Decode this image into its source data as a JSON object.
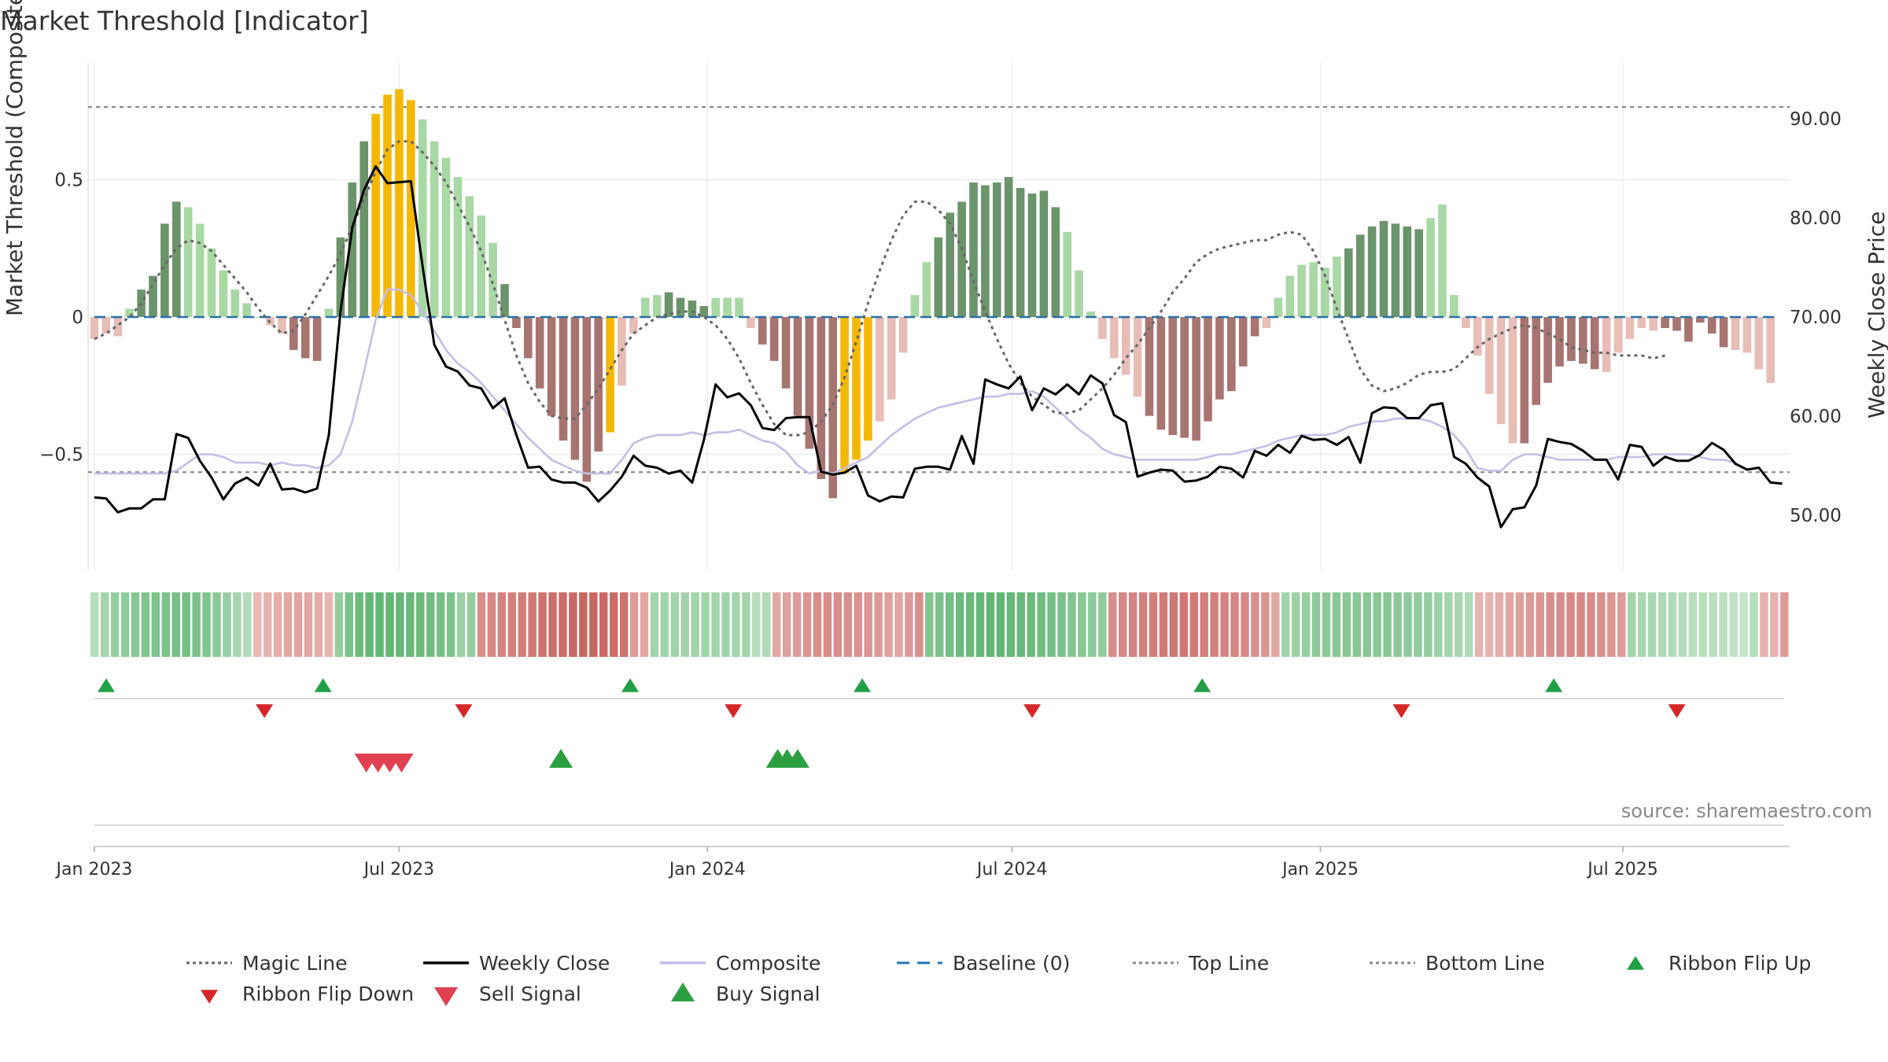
{
  "chart_data": {
    "type": "bar",
    "title": "Market Threshold [Indicator]",
    "ylabel_left": "Market Threshold (Composite)",
    "ylabel_right": "Weekly Close Price",
    "source": "source: sharemaestro.com",
    "ylim_left": [
      -0.93,
      0.93
    ],
    "ylim_right": [
      45.5,
      96.5
    ],
    "left_ticks": [
      {
        "value": 0.5,
        "label": "0.5"
      },
      {
        "value": 0,
        "label": "0"
      },
      {
        "value": -0.5,
        "label": "−0.5"
      }
    ],
    "right_ticks": [
      {
        "value": 90,
        "label": "90.00"
      },
      {
        "value": 80,
        "label": "80.00"
      },
      {
        "value": 70,
        "label": "70.00"
      },
      {
        "value": 60,
        "label": "60.00"
      },
      {
        "value": 50,
        "label": "50.00"
      }
    ],
    "x_ticks": [
      {
        "week": 0,
        "label": "Jan 2023"
      },
      {
        "week": 26,
        "label": "Jul 2023"
      },
      {
        "week": 52.3,
        "label": "Jan 2024"
      },
      {
        "week": 78.3,
        "label": "Jul 2024"
      },
      {
        "week": 104.6,
        "label": "Jan 2025"
      },
      {
        "week": 130.4,
        "label": "Jul 2025"
      }
    ],
    "x_start": "2023-01-02",
    "top_line": 0.765,
    "bottom_line": -0.565,
    "baseline": 0,
    "composite_hist": [
      -0.08,
      -0.06,
      -0.07,
      0.03,
      0.1,
      0.15,
      0.34,
      0.42,
      0.4,
      0.34,
      0.25,
      0.17,
      0.1,
      0.05,
      0,
      -0.03,
      -0.06,
      -0.12,
      -0.15,
      -0.16,
      0.03,
      0.29,
      0.49,
      0.64,
      0.74,
      0.81,
      0.83,
      0.79,
      0.72,
      0.64,
      0.58,
      0.51,
      0.44,
      0.37,
      0.27,
      0.12,
      -0.04,
      -0.15,
      -0.26,
      -0.36,
      -0.45,
      -0.52,
      -0.6,
      -0.49,
      -0.42,
      -0.25,
      -0.06,
      0.07,
      0.08,
      0.09,
      0.07,
      0.06,
      0.04,
      0.07,
      0.07,
      0.07,
      -0.04,
      -0.1,
      -0.16,
      -0.26,
      -0.36,
      -0.48,
      -0.59,
      -0.66,
      -0.57,
      -0.52,
      -0.45,
      -0.38,
      -0.3,
      -0.13,
      0.08,
      0.2,
      0.29,
      0.38,
      0.42,
      0.49,
      0.48,
      0.49,
      0.51,
      0.47,
      0.45,
      0.46,
      0.4,
      0.31,
      0.17,
      0.02,
      -0.08,
      -0.15,
      -0.21,
      -0.29,
      -0.36,
      -0.41,
      -0.43,
      -0.44,
      -0.45,
      -0.38,
      -0.3,
      -0.27,
      -0.18,
      -0.07,
      -0.04,
      0.07,
      0.15,
      0.19,
      0.2,
      0.18,
      0.22,
      0.25,
      0.3,
      0.33,
      0.35,
      0.34,
      0.33,
      0.32,
      0.36,
      0.41,
      0.08,
      -0.04,
      -0.14,
      -0.28,
      -0.39,
      -0.46,
      -0.46,
      -0.32,
      -0.24,
      -0.18,
      -0.16,
      -0.17,
      -0.19,
      -0.2,
      -0.13,
      -0.08,
      -0.04,
      -0.05,
      -0.04,
      -0.05,
      -0.09,
      -0.02,
      -0.06,
      -0.11,
      -0.12,
      -0.13,
      -0.19,
      -0.24
    ],
    "hist_colors": {
      "strong_pos": "#6a946a",
      "weak_pos": "#a8d8a4",
      "strong_neg": "#a87470",
      "weak_neg": "#e8bdb6",
      "extreme": "#f5b800"
    },
    "hist_shades": "WWWWSSSSWWWWWWWWWSSSWSSSXXXXWWWWWWWSSSSSSSSSXWWWWSSSSWWWWSSSSSSSXXXWWWWWSSSSSSSSSSSWWWWWWWSSSSSSSSSSWWWWWWWSSSSSSSWWWWWWWWSSSSSSSWWWWWSSSSSSWWWWWWSSSSSS",
    "composite_line": [
      -0.57,
      -0.57,
      -0.57,
      -0.57,
      -0.57,
      -0.57,
      -0.57,
      -0.56,
      -0.53,
      -0.5,
      -0.5,
      -0.51,
      -0.53,
      -0.53,
      -0.53,
      -0.54,
      -0.53,
      -0.54,
      -0.54,
      -0.55,
      -0.54,
      -0.5,
      -0.38,
      -0.2,
      -0.01,
      0.1,
      0.1,
      0.08,
      0.02,
      -0.05,
      -0.12,
      -0.17,
      -0.2,
      -0.24,
      -0.29,
      -0.34,
      -0.39,
      -0.44,
      -0.48,
      -0.52,
      -0.54,
      -0.56,
      -0.57,
      -0.57,
      -0.57,
      -0.52,
      -0.46,
      -0.44,
      -0.43,
      -0.43,
      -0.43,
      -0.42,
      -0.43,
      -0.42,
      -0.42,
      -0.41,
      -0.43,
      -0.45,
      -0.46,
      -0.49,
      -0.54,
      -0.57,
      -0.56,
      -0.57,
      -0.55,
      -0.53,
      -0.51,
      -0.47,
      -0.43,
      -0.4,
      -0.37,
      -0.35,
      -0.33,
      -0.32,
      -0.31,
      -0.3,
      -0.29,
      -0.29,
      -0.28,
      -0.28,
      -0.27,
      -0.29,
      -0.33,
      -0.37,
      -0.41,
      -0.44,
      -0.48,
      -0.5,
      -0.51,
      -0.52,
      -0.52,
      -0.52,
      -0.52,
      -0.52,
      -0.52,
      -0.51,
      -0.5,
      -0.5,
      -0.49,
      -0.48,
      -0.47,
      -0.45,
      -0.44,
      -0.43,
      -0.43,
      -0.43,
      -0.42,
      -0.4,
      -0.39,
      -0.38,
      -0.38,
      -0.37,
      -0.37,
      -0.37,
      -0.38,
      -0.4,
      -0.43,
      -0.48,
      -0.55,
      -0.56,
      -0.56,
      -0.52,
      -0.5,
      -0.5,
      -0.51,
      -0.52,
      -0.52,
      -0.52,
      -0.52,
      -0.52,
      -0.51,
      -0.51,
      -0.51,
      -0.5,
      -0.5,
      -0.5,
      -0.5,
      -0.51,
      -0.52,
      -0.52,
      -0.53
    ],
    "magic_line": [
      -0.08,
      -0.06,
      -0.03,
      0,
      0.05,
      0.12,
      0.19,
      0.25,
      0.28,
      0.27,
      0.24,
      0.19,
      0.14,
      0.09,
      0.03,
      -0.02,
      -0.06,
      -0.05,
      0.01,
      0.08,
      0.15,
      0.23,
      0.33,
      0.43,
      0.53,
      0.61,
      0.64,
      0.64,
      0.6,
      0.55,
      0.49,
      0.41,
      0.33,
      0.24,
      0.12,
      -0.01,
      -0.14,
      -0.24,
      -0.31,
      -0.36,
      -0.37,
      -0.37,
      -0.32,
      -0.26,
      -0.19,
      -0.12,
      -0.06,
      -0.03,
      0,
      0.01,
      0.02,
      0.02,
      0,
      -0.03,
      -0.08,
      -0.15,
      -0.24,
      -0.32,
      -0.39,
      -0.43,
      -0.43,
      -0.42,
      -0.38,
      -0.32,
      -0.22,
      -0.09,
      0.05,
      0.17,
      0.28,
      0.37,
      0.42,
      0.42,
      0.39,
      0.34,
      0.25,
      0.13,
      0.02,
      -0.08,
      -0.17,
      -0.24,
      -0.29,
      -0.32,
      -0.35,
      -0.35,
      -0.34,
      -0.3,
      -0.26,
      -0.21,
      -0.15,
      -0.1,
      -0.04,
      0.02,
      0.09,
      0.14,
      0.2,
      0.23,
      0.25,
      0.26,
      0.27,
      0.28,
      0.28,
      0.3,
      0.31,
      0.3,
      0.24,
      0.15,
      0.03,
      -0.08,
      -0.19,
      -0.25,
      -0.27,
      -0.26,
      -0.24,
      -0.21,
      -0.2,
      -0.2,
      -0.19,
      -0.15,
      -0.11,
      -0.08,
      -0.06,
      -0.04,
      -0.03,
      -0.04,
      -0.06,
      -0.08,
      -0.11,
      -0.12,
      -0.13,
      -0.13,
      -0.14,
      -0.14,
      -0.14,
      -0.15,
      -0.14
    ],
    "weekly_close": [
      51.8,
      51.7,
      50.3,
      50.7,
      50.7,
      51.6,
      51.6,
      58.2,
      57.8,
      55.5,
      53.8,
      51.6,
      53.2,
      53.8,
      53.0,
      55.2,
      52.6,
      52.7,
      52.3,
      52.7,
      58.1,
      70.6,
      79.0,
      82.8,
      85.2,
      83.5,
      83.6,
      83.7,
      75.1,
      67.2,
      65.0,
      64.5,
      63.1,
      62.8,
      60.8,
      61.8,
      58.1,
      54.8,
      54.9,
      53.6,
      53.3,
      53.3,
      52.8,
      51.4,
      52.5,
      53.9,
      56.0,
      55.0,
      54.8,
      54.2,
      54.5,
      53.3,
      57.6,
      63.2,
      61.9,
      62.3,
      61.1,
      58.8,
      58.6,
      59.8,
      59.9,
      59.9,
      54.4,
      54.1,
      54.3,
      55.0,
      52.0,
      51.4,
      51.9,
      51.8,
      54.7,
      54.9,
      54.9,
      54.6,
      58.0,
      55.2,
      63.7,
      63.2,
      62.8,
      64.0,
      60.6,
      62.8,
      62.2,
      63.2,
      62.2,
      64.1,
      63.3,
      60.1,
      59.4,
      53.9,
      54.3,
      54.6,
      54.5,
      53.4,
      53.5,
      53.9,
      54.9,
      54.7,
      53.8,
      56.5,
      56.0,
      57.1,
      56.3,
      58.0,
      57.6,
      57.7,
      57.1,
      57.9,
      55.3,
      60.3,
      60.9,
      60.8,
      59.8,
      59.8,
      61.1,
      61.3,
      55.9,
      55.2,
      53.8,
      52.9,
      48.8,
      50.6,
      50.8,
      53.0,
      57.7,
      57.4,
      57.2,
      56.5,
      55.6,
      55.6,
      53.6,
      57.1,
      56.9,
      55.0,
      55.9,
      55.5,
      55.5,
      56.1,
      57.3,
      56.6,
      55.2,
      54.6,
      54.8,
      53.3,
      53.2
    ],
    "ribbon": "PPPPPPPPPPPPPPPPNNNNNNNNPPPPPPPPPPPPPPNNNNNNNNNNNNNNNNNPPPPPPPPPPPPNNNNNNNNNNNNNNNPPPPPPPPPPPPPPPPPPNNNNNNNNNNNNNNNNNPPPPPPPPPPPPPPPPPPPNNNNNNNNNNNNNNNPPPPPPPPPPPPPNNN",
    "ribbon_intensity": [
      0.3,
      0.45,
      0.55,
      0.6,
      0.65,
      0.7,
      0.72,
      0.75,
      0.78,
      0.78,
      0.75,
      0.7,
      0.62,
      0.52,
      0.42,
      0.32,
      0.25,
      0.3,
      0.35,
      0.4,
      0.42,
      0.4,
      0.35,
      0.3,
      0.55,
      0.75,
      0.85,
      0.9,
      0.92,
      0.92,
      0.9,
      0.88,
      0.85,
      0.82,
      0.78,
      0.72,
      0.5,
      0.55,
      0.6,
      0.65,
      0.7,
      0.72,
      0.75,
      0.8,
      0.85,
      0.88,
      0.9,
      0.92,
      0.95,
      0.95,
      0.92,
      0.9,
      0.85,
      0.5,
      0.4,
      0.45,
      0.45,
      0.45,
      0.45,
      0.45,
      0.45,
      0.45,
      0.45,
      0.45,
      0.45,
      0.3,
      0.35,
      0.4,
      0.45,
      0.5,
      0.55,
      0.6,
      0.62,
      0.62,
      0.6,
      0.58,
      0.55,
      0.5,
      0.45,
      0.4,
      0.5,
      0.6,
      0.68,
      0.75,
      0.8,
      0.85,
      0.88,
      0.9,
      0.92,
      0.92,
      0.9,
      0.88,
      0.85,
      0.82,
      0.78,
      0.75,
      0.7,
      0.65,
      0.6,
      0.6,
      0.62,
      0.65,
      0.7,
      0.72,
      0.75,
      0.78,
      0.8,
      0.8,
      0.78,
      0.75,
      0.72,
      0.7,
      0.68,
      0.65,
      0.6,
      0.55,
      0.4,
      0.45,
      0.5,
      0.55,
      0.6,
      0.62,
      0.65,
      0.65,
      0.65,
      0.65,
      0.65,
      0.65,
      0.62,
      0.6,
      0.58,
      0.55,
      0.5,
      0.45,
      0.4,
      0.35,
      0.3,
      0.3,
      0.35,
      0.4,
      0.45,
      0.5,
      0.55,
      0.6,
      0.62,
      0.65,
      0.65,
      0.62,
      0.6,
      0.55,
      0.5,
      0.45,
      0.4,
      0.38,
      0.36,
      0.34,
      0.32,
      0.3,
      0.28,
      0.26,
      0.24,
      0.22,
      0.2,
      0.3,
      0.32,
      0.3
    ],
    "ribbon_flip_up": [
      0,
      18.5,
      44.7,
      64.5,
      93.5,
      123.5
    ],
    "ribbon_flip_down": [
      13.5,
      30.5,
      53.5,
      79.0,
      110.5,
      134.0
    ],
    "sell_signals": [
      23,
      24,
      25,
      26
    ],
    "buy_signals": [
      39.8,
      58.3,
      59.1,
      60.0
    ],
    "legend": [
      {
        "label": "Magic Line",
        "kind": "dotted-line",
        "color": "#666666"
      },
      {
        "label": "Weekly Close",
        "kind": "solid-line",
        "color": "#000000"
      },
      {
        "label": "Composite",
        "kind": "solid-line",
        "color": "#c5bde6"
      },
      {
        "label": "Baseline (0)",
        "kind": "dashed-line",
        "color": "#1f77b4"
      },
      {
        "label": "Top Line",
        "kind": "dotted-line",
        "color": "#888888"
      },
      {
        "label": "Bottom Line",
        "kind": "dotted-line",
        "color": "#888888"
      },
      {
        "label": "Ribbon Flip Up",
        "kind": "triangle-up",
        "color": "#22a044"
      },
      {
        "label": "Ribbon Flip Down",
        "kind": "triangle-down",
        "color": "#d62728"
      },
      {
        "label": "Sell Signal",
        "kind": "triangle-down-large",
        "color": "#e04050"
      },
      {
        "label": "Buy Signal",
        "kind": "triangle-up-large",
        "color": "#2ca040"
      }
    ]
  }
}
